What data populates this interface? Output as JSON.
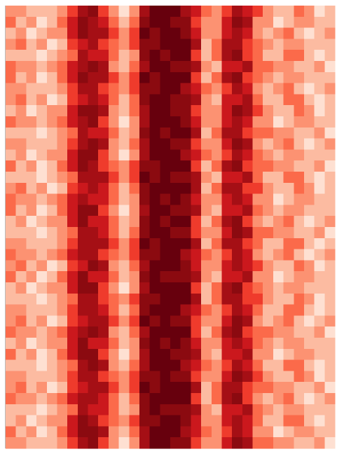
{
  "chart_data": {
    "type": "heatmap",
    "zlim": [
      0,
      9
    ],
    "colors": [
      "#fff5f0",
      "#fee0d2",
      "#fcbba1",
      "#fc9272",
      "#fb6a4a",
      "#ef3b2c",
      "#cb181d",
      "#a50f15",
      "#8b0a10",
      "#67000d"
    ],
    "z": [
      [
        3,
        3,
        2,
        2,
        2,
        3,
        5,
        7,
        8,
        5,
        3,
        1,
        3,
        7,
        9,
        9,
        9,
        7,
        6,
        4,
        3,
        5,
        7,
        6,
        5,
        3,
        2,
        2,
        4,
        3,
        1,
        2
      ],
      [
        4,
        2,
        3,
        1,
        2,
        4,
        6,
        8,
        7,
        6,
        4,
        2,
        4,
        8,
        9,
        9,
        8,
        8,
        5,
        3,
        3,
        6,
        8,
        7,
        3,
        3,
        1,
        2,
        3,
        3,
        2,
        2
      ],
      [
        2,
        3,
        1,
        2,
        3,
        3,
        6,
        8,
        7,
        7,
        5,
        3,
        5,
        9,
        8,
        9,
        9,
        8,
        6,
        3,
        3,
        6,
        7,
        6,
        3,
        2,
        3,
        4,
        2,
        1,
        2,
        3
      ],
      [
        3,
        4,
        2,
        3,
        1,
        2,
        5,
        6,
        7,
        5,
        4,
        3,
        5,
        8,
        8,
        9,
        9,
        9,
        7,
        2,
        4,
        7,
        7,
        5,
        4,
        3,
        2,
        3,
        3,
        2,
        2,
        2
      ],
      [
        2,
        2,
        2,
        1,
        2,
        3,
        4,
        7,
        6,
        6,
        4,
        2,
        3,
        8,
        9,
        8,
        9,
        9,
        5,
        2,
        4,
        7,
        8,
        5,
        4,
        2,
        2,
        4,
        4,
        2,
        1,
        2
      ],
      [
        4,
        3,
        3,
        2,
        3,
        4,
        6,
        7,
        8,
        7,
        3,
        2,
        4,
        7,
        9,
        9,
        8,
        8,
        7,
        3,
        2,
        6,
        6,
        7,
        4,
        4,
        3,
        3,
        2,
        2,
        3,
        1
      ],
      [
        4,
        2,
        3,
        1,
        2,
        4,
        6,
        8,
        7,
        7,
        5,
        3,
        5,
        9,
        8,
        9,
        9,
        9,
        5,
        2,
        4,
        7,
        8,
        5,
        4,
        3,
        2,
        3,
        3,
        2,
        2,
        2
      ],
      [
        3,
        3,
        2,
        2,
        2,
        3,
        5,
        7,
        7,
        5,
        4,
        3,
        5,
        8,
        8,
        9,
        9,
        7,
        6,
        4,
        3,
        5,
        7,
        6,
        3,
        2,
        3,
        4,
        2,
        1,
        2,
        3
      ],
      [
        3,
        4,
        2,
        3,
        1,
        2,
        5,
        6,
        7,
        6,
        4,
        2,
        4,
        8,
        9,
        9,
        8,
        8,
        7,
        3,
        2,
        6,
        6,
        7,
        4,
        2,
        2,
        4,
        4,
        2,
        1,
        2
      ],
      [
        2,
        3,
        1,
        2,
        3,
        3,
        6,
        8,
        8,
        7,
        3,
        2,
        4,
        7,
        9,
        9,
        8,
        8,
        5,
        3,
        3,
        6,
        8,
        7,
        5,
        3,
        2,
        2,
        4,
        3,
        1,
        2
      ],
      [
        4,
        3,
        3,
        2,
        3,
        4,
        6,
        7,
        8,
        5,
        3,
        1,
        3,
        7,
        9,
        9,
        9,
        8,
        6,
        3,
        3,
        6,
        7,
        6,
        3,
        3,
        1,
        2,
        3,
        3,
        2,
        2
      ],
      [
        2,
        2,
        2,
        1,
        2,
        3,
        4,
        7,
        6,
        6,
        4,
        2,
        3,
        8,
        9,
        8,
        9,
        9,
        7,
        2,
        4,
        7,
        7,
        5,
        4,
        4,
        3,
        3,
        2,
        2,
        3,
        1
      ],
      [
        3,
        3,
        2,
        2,
        2,
        3,
        5,
        7,
        8,
        7,
        3,
        2,
        4,
        7,
        9,
        9,
        8,
        8,
        5,
        3,
        3,
        6,
        8,
        7,
        3,
        2,
        3,
        4,
        2,
        1,
        2,
        3
      ],
      [
        2,
        3,
        1,
        2,
        3,
        3,
        6,
        8,
        8,
        5,
        3,
        1,
        3,
        7,
        9,
        9,
        9,
        7,
        6,
        4,
        3,
        5,
        7,
        6,
        4,
        3,
        2,
        3,
        3,
        2,
        2,
        2
      ],
      [
        4,
        2,
        3,
        1,
        2,
        4,
        6,
        8,
        7,
        5,
        4,
        3,
        5,
        8,
        8,
        9,
        9,
        9,
        5,
        2,
        4,
        7,
        8,
        5,
        4,
        4,
        3,
        3,
        2,
        2,
        3,
        1
      ],
      [
        2,
        2,
        2,
        1,
        2,
        3,
        4,
        7,
        7,
        7,
        5,
        3,
        5,
        9,
        8,
        9,
        8,
        8,
        7,
        3,
        2,
        6,
        6,
        7,
        4,
        2,
        2,
        4,
        4,
        2,
        1,
        2
      ],
      [
        3,
        4,
        2,
        3,
        1,
        2,
        5,
        6,
        7,
        6,
        4,
        2,
        4,
        8,
        9,
        9,
        9,
        9,
        7,
        2,
        4,
        7,
        7,
        5,
        5,
        3,
        2,
        2,
        4,
        3,
        1,
        2
      ],
      [
        4,
        3,
        3,
        2,
        3,
        4,
        6,
        7,
        6,
        6,
        4,
        2,
        3,
        8,
        9,
        8,
        9,
        8,
        6,
        3,
        3,
        6,
        7,
        6,
        3,
        3,
        1,
        2,
        3,
        3,
        2,
        2
      ],
      [
        4,
        2,
        3,
        1,
        2,
        4,
        6,
        8,
        8,
        5,
        3,
        1,
        3,
        7,
        9,
        9,
        8,
        8,
        7,
        3,
        2,
        6,
        6,
        7,
        4,
        3,
        2,
        3,
        3,
        2,
        2,
        2
      ],
      [
        2,
        3,
        1,
        2,
        3,
        3,
        6,
        8,
        6,
        6,
        4,
        2,
        3,
        8,
        9,
        8,
        9,
        9,
        5,
        2,
        4,
        7,
        8,
        5,
        3,
        2,
        3,
        4,
        2,
        1,
        2,
        3
      ],
      [
        2,
        2,
        2,
        1,
        2,
        3,
        4,
        7,
        7,
        6,
        4,
        2,
        4,
        8,
        9,
        9,
        8,
        8,
        5,
        3,
        3,
        6,
        8,
        7,
        4,
        4,
        3,
        3,
        2,
        2,
        3,
        1
      ],
      [
        3,
        3,
        2,
        2,
        2,
        3,
        5,
        7,
        7,
        7,
        5,
        3,
        5,
        9,
        8,
        9,
        9,
        9,
        7,
        2,
        4,
        7,
        7,
        5,
        4,
        2,
        2,
        4,
        4,
        2,
        1,
        2
      ],
      [
        4,
        3,
        3,
        2,
        3,
        4,
        6,
        7,
        7,
        5,
        4,
        3,
        5,
        8,
        8,
        9,
        9,
        7,
        6,
        4,
        3,
        5,
        7,
        6,
        3,
        2,
        3,
        4,
        2,
        1,
        2,
        3
      ],
      [
        3,
        4,
        2,
        3,
        1,
        2,
        5,
        6,
        8,
        7,
        3,
        2,
        4,
        7,
        9,
        9,
        9,
        8,
        6,
        3,
        3,
        6,
        7,
        6,
        5,
        3,
        2,
        2,
        4,
        3,
        1,
        2
      ],
      [
        4,
        2,
        3,
        1,
        2,
        4,
        6,
        8,
        6,
        6,
        4,
        2,
        3,
        8,
        9,
        8,
        8,
        8,
        7,
        3,
        2,
        6,
        6,
        7,
        3,
        3,
        1,
        2,
        3,
        3,
        2,
        2
      ],
      [
        2,
        3,
        1,
        2,
        3,
        3,
        6,
        8,
        8,
        5,
        3,
        1,
        3,
        7,
        9,
        9,
        9,
        9,
        5,
        2,
        4,
        7,
        8,
        5,
        4,
        3,
        2,
        3,
        3,
        2,
        2,
        2
      ],
      [
        2,
        2,
        2,
        1,
        2,
        3,
        4,
        7,
        7,
        5,
        4,
        3,
        5,
        8,
        8,
        9,
        9,
        9,
        7,
        2,
        4,
        7,
        7,
        5,
        5,
        3,
        2,
        2,
        4,
        3,
        1,
        2
      ],
      [
        3,
        3,
        2,
        2,
        2,
        3,
        5,
        7,
        7,
        6,
        4,
        2,
        4,
        8,
        9,
        9,
        9,
        7,
        6,
        4,
        3,
        5,
        7,
        6,
        4,
        2,
        2,
        4,
        4,
        2,
        1,
        2
      ],
      [
        3,
        4,
        2,
        3,
        1,
        2,
        5,
        6,
        7,
        7,
        5,
        3,
        5,
        9,
        8,
        9,
        8,
        8,
        5,
        3,
        3,
        6,
        8,
        7,
        3,
        2,
        3,
        4,
        2,
        1,
        2,
        3
      ],
      [
        4,
        3,
        3,
        2,
        3,
        4,
        6,
        7,
        8,
        7,
        3,
        2,
        4,
        7,
        9,
        9,
        9,
        9,
        5,
        2,
        4,
        7,
        8,
        5,
        4,
        4,
        3,
        3,
        2,
        2,
        3,
        1
      ],
      [
        2,
        3,
        1,
        2,
        3,
        3,
        6,
        8,
        6,
        6,
        4,
        2,
        3,
        8,
        9,
        8,
        9,
        8,
        6,
        3,
        3,
        6,
        7,
        6,
        4,
        3,
        2,
        3,
        3,
        2,
        2,
        2
      ],
      [
        4,
        2,
        3,
        1,
        2,
        4,
        6,
        8,
        8,
        5,
        3,
        1,
        3,
        7,
        9,
        9,
        8,
        8,
        7,
        3,
        2,
        6,
        6,
        7,
        3,
        3,
        1,
        2,
        3,
        3,
        2,
        2
      ],
      [
        2,
        2,
        2,
        1,
        2,
        3,
        4,
        7,
        8,
        7,
        3,
        2,
        4,
        7,
        9,
        9,
        9,
        7,
        6,
        4,
        3,
        5,
        7,
        6,
        4,
        2,
        2,
        4,
        4,
        2,
        1,
        2
      ],
      [
        3,
        3,
        2,
        2,
        2,
        3,
        5,
        7,
        7,
        5,
        4,
        3,
        5,
        8,
        8,
        9,
        8,
        8,
        5,
        3,
        3,
        6,
        8,
        7,
        5,
        3,
        2,
        2,
        4,
        3,
        1,
        2
      ],
      [
        3,
        4,
        2,
        3,
        1,
        2,
        5,
        6,
        7,
        7,
        5,
        3,
        5,
        9,
        8,
        9,
        9,
        9,
        7,
        2,
        4,
        7,
        7,
        5,
        4,
        4,
        3,
        3,
        2,
        2,
        3,
        1
      ],
      [
        4,
        3,
        3,
        2,
        3,
        4,
        6,
        7,
        7,
        6,
        4,
        2,
        4,
        8,
        9,
        9,
        9,
        9,
        5,
        2,
        4,
        7,
        8,
        5,
        3,
        2,
        3,
        4,
        2,
        1,
        2,
        3
      ],
      [
        2,
        2,
        2,
        1,
        2,
        3,
        4,
        7,
        6,
        6,
        4,
        2,
        3,
        8,
        9,
        8,
        8,
        8,
        7,
        3,
        2,
        6,
        6,
        7,
        4,
        3,
        2,
        3,
        3,
        2,
        2,
        2
      ],
      [
        2,
        3,
        1,
        2,
        3,
        3,
        6,
        8,
        7,
        5,
        4,
        3,
        5,
        8,
        8,
        9,
        9,
        8,
        6,
        3,
        3,
        6,
        7,
        6,
        4,
        2,
        2,
        4,
        4,
        2,
        1,
        2
      ],
      [
        4,
        2,
        3,
        1,
        2,
        4,
        6,
        8,
        8,
        7,
        3,
        2,
        4,
        7,
        9,
        9,
        9,
        7,
        6,
        4,
        3,
        5,
        7,
        6,
        3,
        3,
        1,
        2,
        3,
        3,
        2,
        2
      ],
      [
        3,
        3,
        2,
        2,
        2,
        3,
        5,
        7,
        8,
        5,
        3,
        1,
        3,
        7,
        9,
        9,
        8,
        8,
        5,
        3,
        3,
        6,
        8,
        7,
        4,
        4,
        3,
        3,
        2,
        2,
        3,
        1
      ]
    ]
  }
}
